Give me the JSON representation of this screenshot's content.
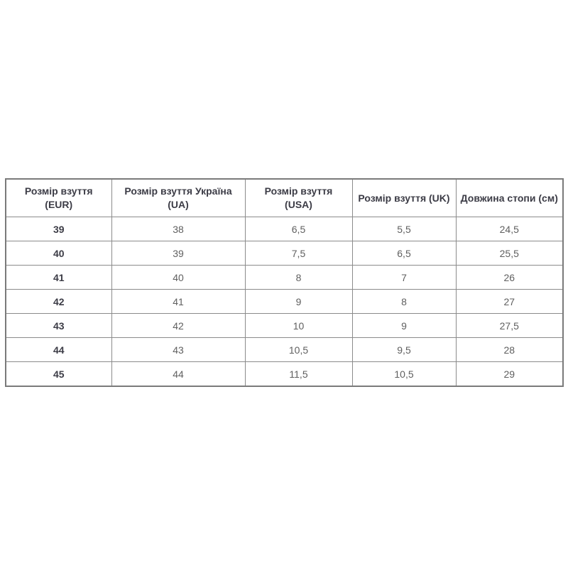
{
  "chart_data": {
    "type": "table",
    "title": "",
    "columns": [
      "Розмір взуття (EUR)",
      "Розмір взуття Україна (UA)",
      "Розмір взуття (USA)",
      "Розмір взуття (UK)",
      "Довжина стопи (см)"
    ],
    "rows": [
      [
        "39",
        "38",
        "6,5",
        "5,5",
        "24,5"
      ],
      [
        "40",
        "39",
        "7,5",
        "6,5",
        "25,5"
      ],
      [
        "41",
        "40",
        "8",
        "7",
        "26"
      ],
      [
        "42",
        "41",
        "9",
        "8",
        "27"
      ],
      [
        "43",
        "42",
        "10",
        "9",
        "27,5"
      ],
      [
        "44",
        "43",
        "10,5",
        "9,5",
        "28"
      ],
      [
        "45",
        "44",
        "11,5",
        "10,5",
        "29"
      ]
    ]
  },
  "colors": {
    "background": "#ffffff",
    "table_outer_border": "#7a7a7a",
    "table_inner_border": "#8b8b8b",
    "header_text": "#3c3c46",
    "eur_column_text": "#3c3c46",
    "cell_text": "#5f5f5f"
  }
}
